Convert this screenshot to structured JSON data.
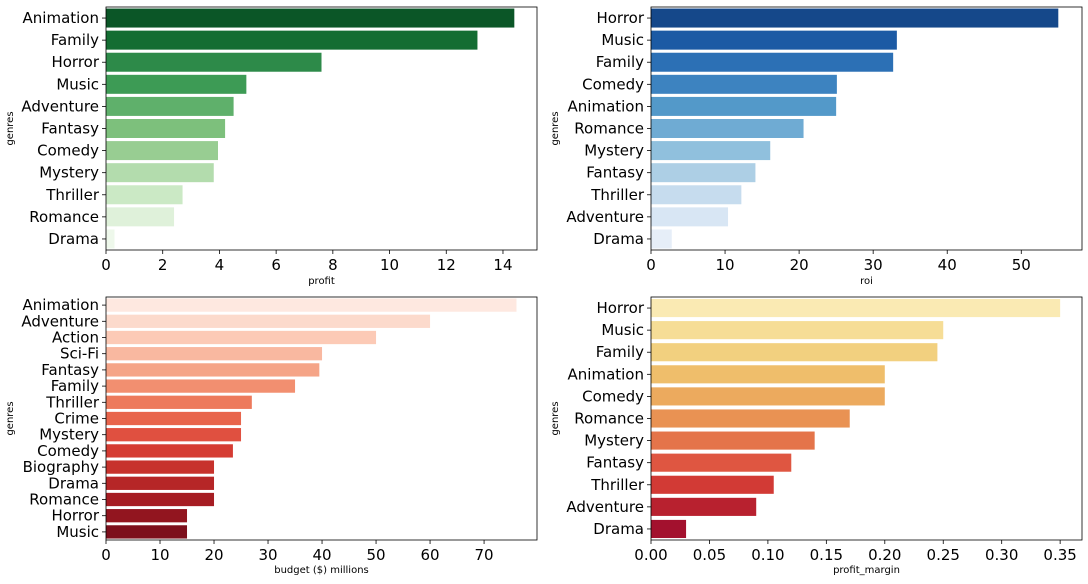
{
  "chart_data": [
    {
      "type": "bar",
      "orientation": "horizontal",
      "categories": [
        "Animation",
        "Family",
        "Horror",
        "Music",
        "Adventure",
        "Fantasy",
        "Comedy",
        "Mystery",
        "Thriller",
        "Romance",
        "Drama"
      ],
      "values": [
        14.4,
        13.1,
        7.6,
        4.95,
        4.5,
        4.2,
        3.95,
        3.8,
        2.7,
        2.4,
        0.3
      ],
      "xlabel": "profit",
      "ylabel": "genres",
      "xlim": [
        0,
        15.2
      ],
      "xticks": [
        0,
        2,
        4,
        6,
        8,
        10,
        12,
        14
      ],
      "xtick_labels": [
        "0",
        "2",
        "4",
        "6",
        "8",
        "10",
        "12",
        "14"
      ],
      "colors": [
        "#0b5627",
        "#146d32",
        "#2d8a49",
        "#3d9b55",
        "#5fb06b",
        "#7dc07c",
        "#98cd92",
        "#b3dcad",
        "#cbe9c5",
        "#dff1da",
        "#eef8eb"
      ]
    },
    {
      "type": "bar",
      "orientation": "horizontal",
      "categories": [
        "Horror",
        "Music",
        "Family",
        "Comedy",
        "Animation",
        "Romance",
        "Mystery",
        "Fantasy",
        "Thriller",
        "Adventure",
        "Drama"
      ],
      "values": [
        55.0,
        33.2,
        32.7,
        25.1,
        25.0,
        20.6,
        16.1,
        14.1,
        12.2,
        10.4,
        2.8
      ],
      "xlabel": "roi",
      "ylabel": "genres",
      "xlim": [
        0,
        58.2
      ],
      "xticks": [
        0,
        10,
        20,
        30,
        40,
        50
      ],
      "xtick_labels": [
        "0",
        "10",
        "20",
        "30",
        "40",
        "50"
      ],
      "colors": [
        "#15488a",
        "#1c5aa4",
        "#2c70b5",
        "#3d83c0",
        "#5399c9",
        "#6fabd3",
        "#90c0dd",
        "#adcfe5",
        "#c6dcee",
        "#d8e6f4",
        "#e6eef8"
      ]
    },
    {
      "type": "bar",
      "orientation": "horizontal",
      "categories": [
        "Animation",
        "Adventure",
        "Action",
        "Sci-Fi",
        "Fantasy",
        "Family",
        "Thriller",
        "Crime",
        "Mystery",
        "Comedy",
        "Biography",
        "Drama",
        "Romance",
        "Horror",
        "Music"
      ],
      "values": [
        76,
        60,
        50,
        40,
        39.5,
        35,
        27,
        25,
        25,
        23.5,
        20,
        20,
        20,
        15,
        15
      ],
      "xlabel": "budget ($) millions",
      "ylabel": "genres",
      "xlim": [
        0,
        79.8
      ],
      "xticks": [
        0,
        10,
        20,
        30,
        40,
        50,
        60,
        70
      ],
      "xtick_labels": [
        "0",
        "10",
        "20",
        "30",
        "40",
        "50",
        "60",
        "70"
      ],
      "colors": [
        "#fee8e0",
        "#fcdacc",
        "#fccab6",
        "#f9b8a0",
        "#f5a487",
        "#f28f70",
        "#ed7a5c",
        "#e8654c",
        "#e05040",
        "#d53c33",
        "#c7322c",
        "#b62627",
        "#a61d23",
        "#92151f",
        "#7d0f1c"
      ]
    },
    {
      "type": "bar",
      "orientation": "horizontal",
      "categories": [
        "Horror",
        "Music",
        "Family",
        "Animation",
        "Comedy",
        "Romance",
        "Mystery",
        "Fantasy",
        "Thriller",
        "Adventure",
        "Drama"
      ],
      "values": [
        0.35,
        0.25,
        0.245,
        0.2,
        0.2,
        0.17,
        0.14,
        0.12,
        0.105,
        0.09,
        0.03
      ],
      "xlabel": "profit_margin",
      "ylabel": "genres",
      "xlim": [
        0,
        0.3687
      ],
      "xticks": [
        0,
        0.05,
        0.1,
        0.15,
        0.2,
        0.25,
        0.3,
        0.35
      ],
      "xtick_labels": [
        "0.00",
        "0.05",
        "0.10",
        "0.15",
        "0.20",
        "0.25",
        "0.30",
        "0.35"
      ],
      "colors": [
        "#faeab3",
        "#f6dd96",
        "#f2d07f",
        "#efbe6b",
        "#ecaa5e",
        "#e99253",
        "#e4744a",
        "#df5641",
        "#d23a35",
        "#b8212f",
        "#a3112e"
      ]
    }
  ]
}
